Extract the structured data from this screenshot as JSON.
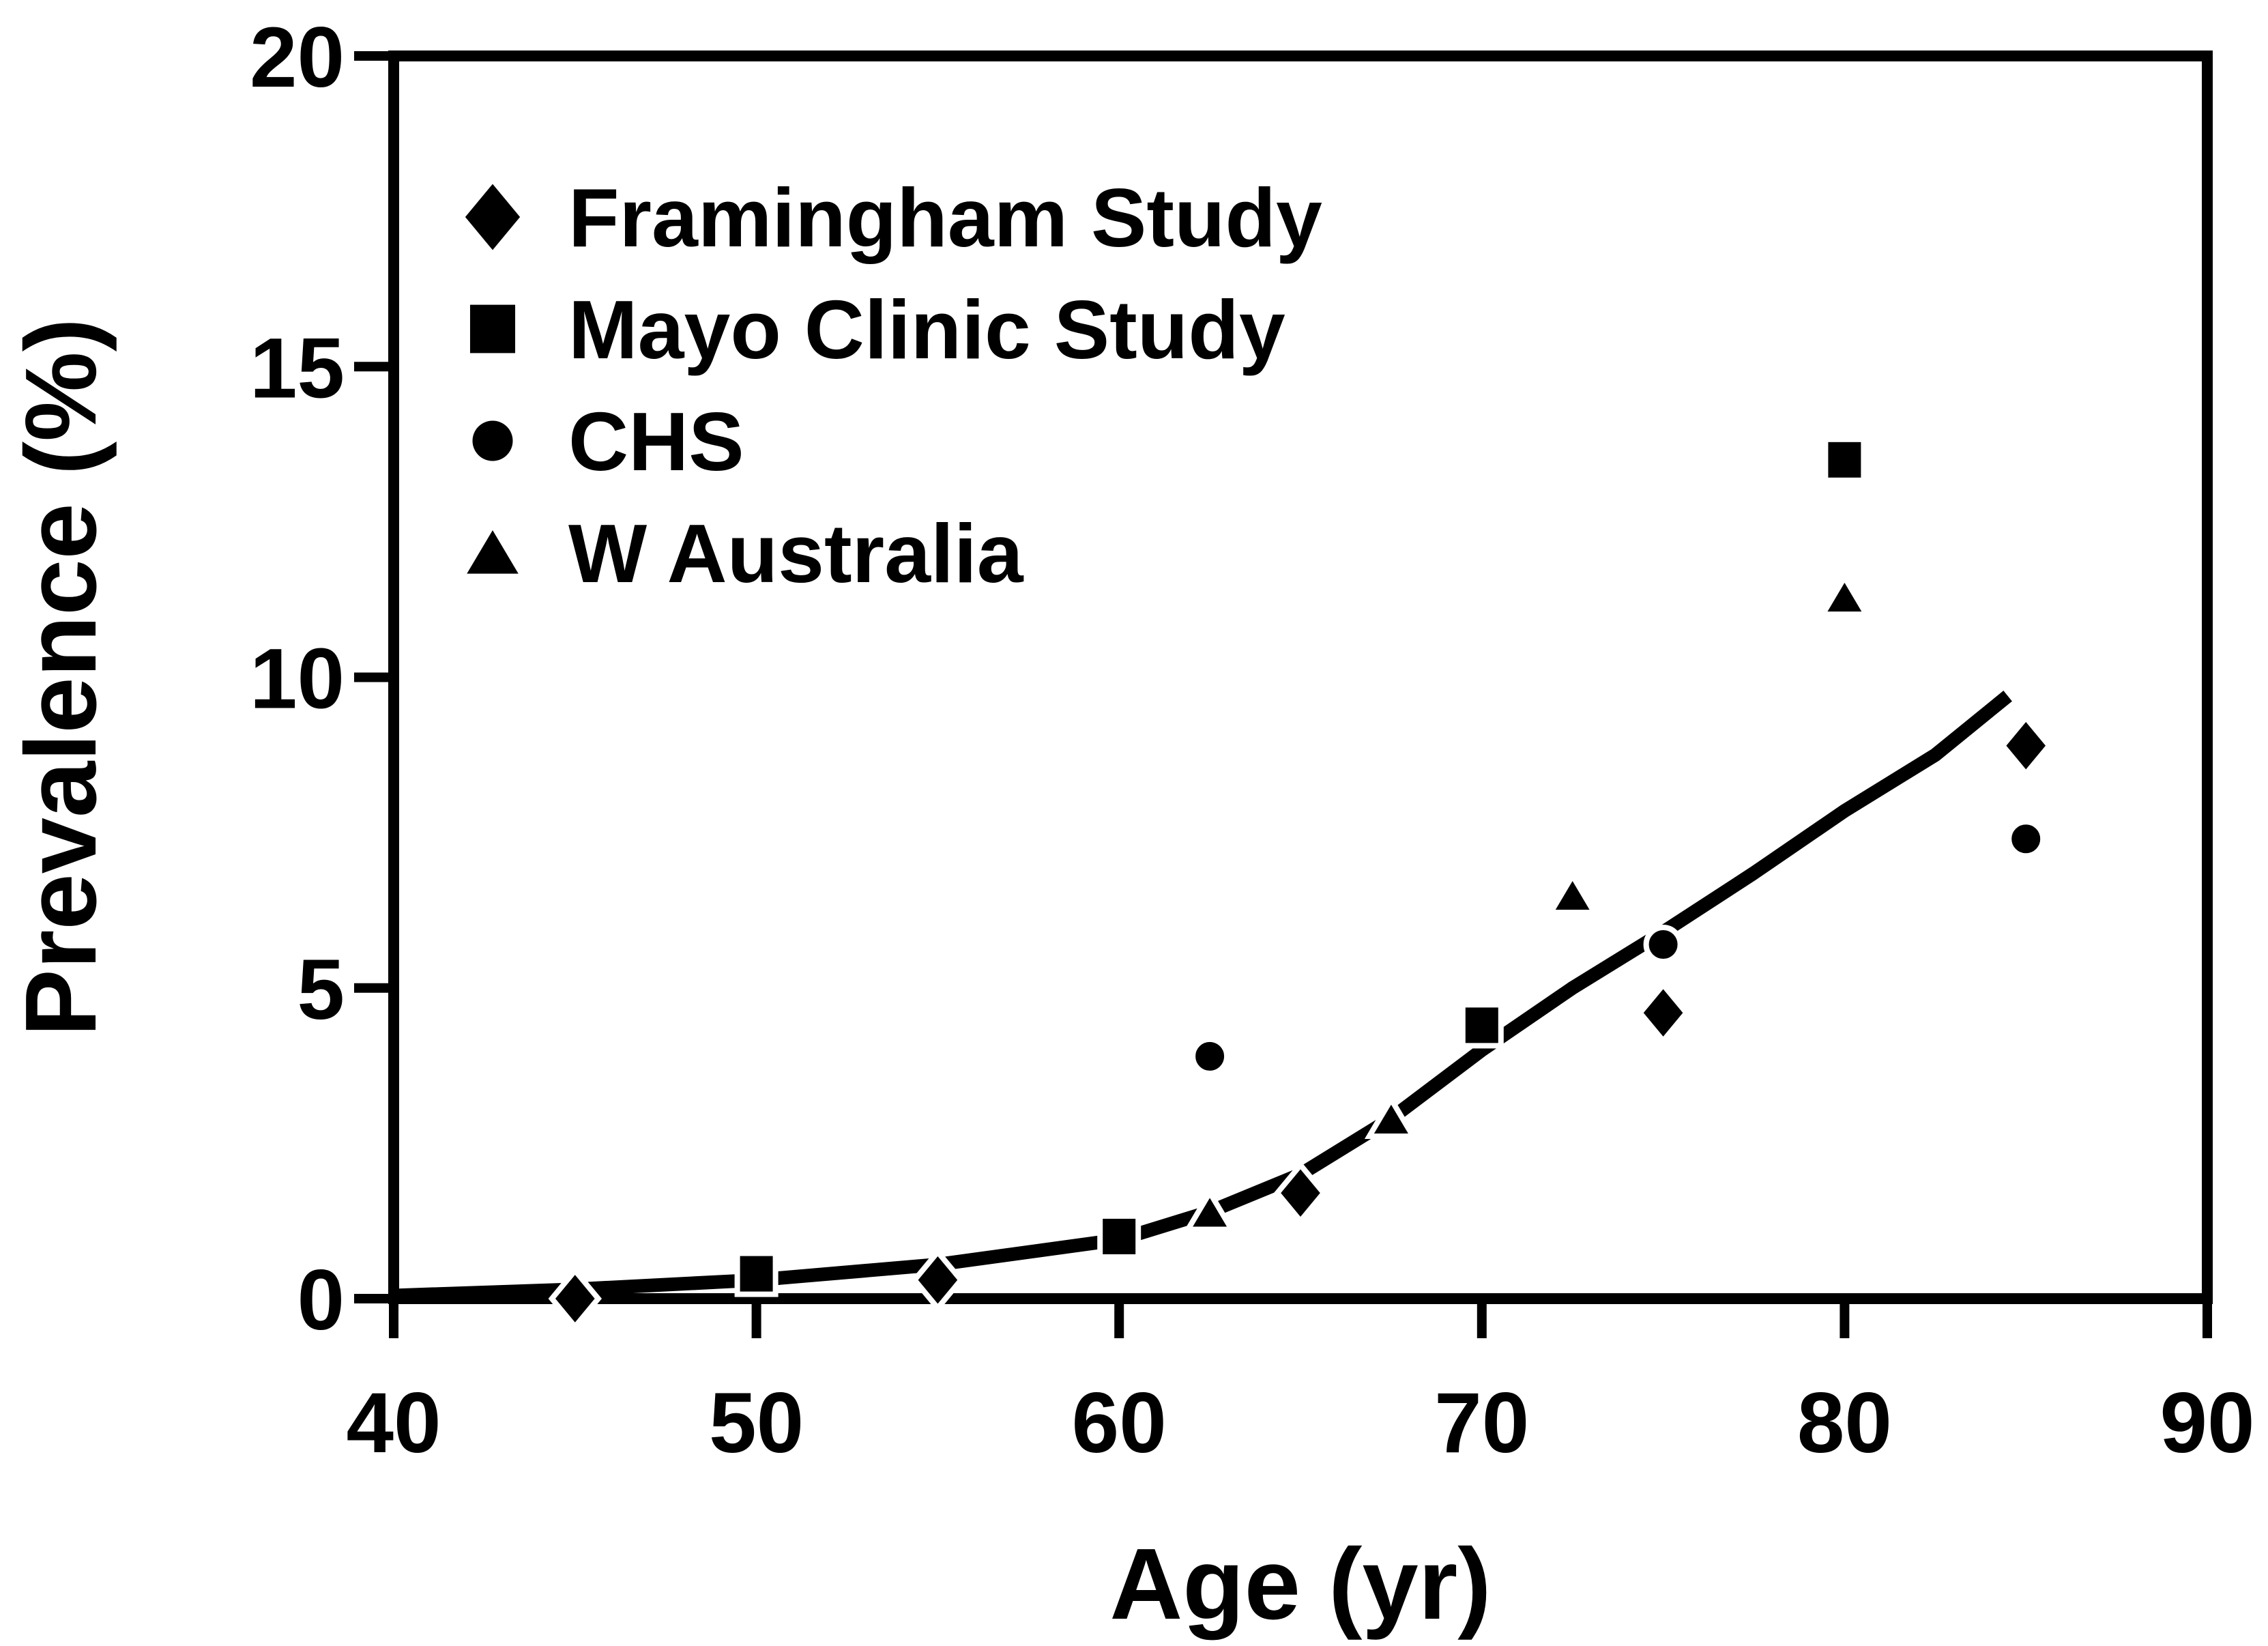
{
  "figure": {
    "background_color": "#ffffff",
    "ink_color": "#000000"
  },
  "chart_data": {
    "type": "scatter",
    "title": "",
    "xlabel": "Age (yr)",
    "ylabel": "Prevalence (%)",
    "xlim": [
      40,
      90
    ],
    "ylim": [
      0,
      20
    ],
    "xticks": [
      40,
      50,
      60,
      70,
      80,
      90
    ],
    "yticks": [
      0,
      5,
      10,
      15,
      20
    ],
    "grid": false,
    "legend_position": "upper-left",
    "series": [
      {
        "name": "Framingham Study",
        "marker": "diamond",
        "points": [
          [
            45,
            0.0
          ],
          [
            55,
            0.3
          ],
          [
            65,
            1.7
          ],
          [
            75,
            4.6
          ],
          [
            85,
            8.9
          ]
        ]
      },
      {
        "name": "Mayo Clinic Study",
        "marker": "square",
        "points": [
          [
            50,
            0.4
          ],
          [
            60,
            1.0
          ],
          [
            70,
            4.4
          ],
          [
            80,
            13.5
          ]
        ]
      },
      {
        "name": "CHS",
        "marker": "circle",
        "points": [
          [
            62.5,
            3.9
          ],
          [
            75,
            5.7
          ],
          [
            85,
            7.4
          ]
        ]
      },
      {
        "name": "W Australia",
        "marker": "triangle",
        "points": [
          [
            62.5,
            1.4
          ],
          [
            67.5,
            2.9
          ],
          [
            72.5,
            6.5
          ],
          [
            80,
            11.3
          ]
        ]
      }
    ],
    "trend_line": {
      "description": "fitted prevalence curve",
      "points": [
        [
          40,
          0.05
        ],
        [
          45,
          0.15
        ],
        [
          50,
          0.3
        ],
        [
          55,
          0.55
        ],
        [
          60,
          0.95
        ],
        [
          62.5,
          1.4
        ],
        [
          65,
          2.0
        ],
        [
          67.5,
          2.9
        ],
        [
          70,
          4.0
        ],
        [
          72.5,
          5.0
        ],
        [
          75,
          5.9
        ],
        [
          77.5,
          6.85
        ],
        [
          80,
          7.85
        ],
        [
          82.5,
          8.75
        ],
        [
          84.5,
          9.7
        ]
      ]
    }
  }
}
